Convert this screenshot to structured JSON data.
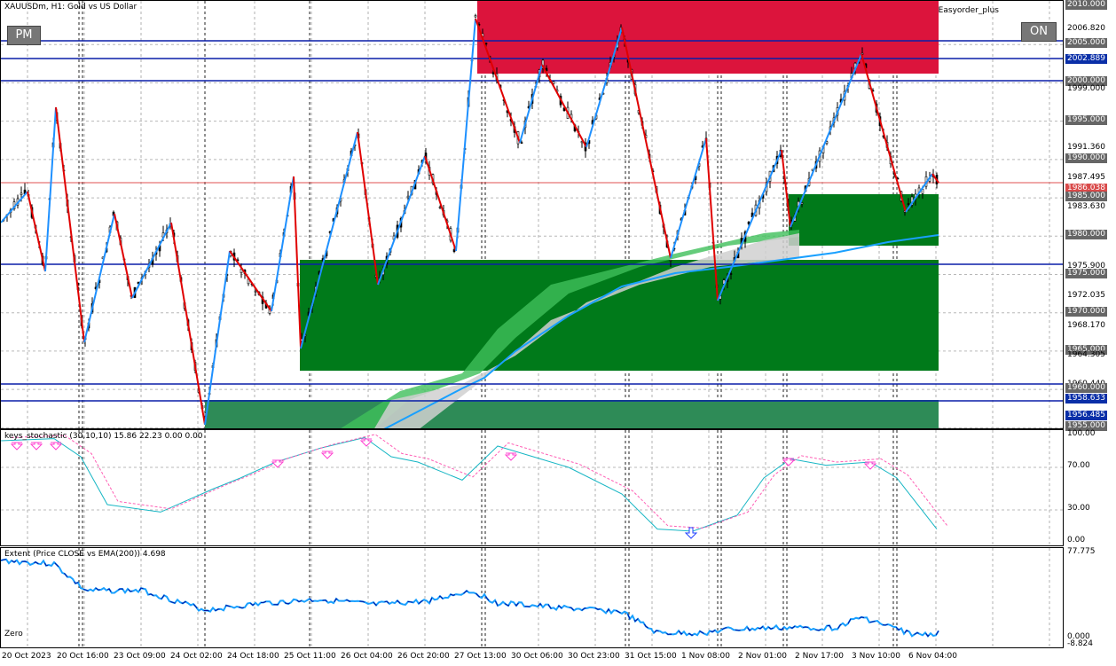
{
  "main": {
    "symbol_title": "XAUUSDm, H1:  Gold vs US Dollar",
    "pm_button": "PM",
    "on_button": "ON",
    "easyorder_label": "Easyorder_plus",
    "price_labels": [
      {
        "text": "2010.000",
        "style": "gray"
      },
      {
        "text": "2006.820",
        "style": "plain"
      },
      {
        "text": "2005.000",
        "style": "gray"
      },
      {
        "text": "2002.889",
        "style": "blue"
      },
      {
        "text": "2000.000",
        "style": "gray"
      },
      {
        "text": "1999.000",
        "style": "plain"
      },
      {
        "text": "1995.000",
        "style": "gray"
      },
      {
        "text": "1991.360",
        "style": "plain"
      },
      {
        "text": "1990.000",
        "style": "gray"
      },
      {
        "text": "1987.495",
        "style": "plain"
      },
      {
        "text": "1986.038",
        "style": "red"
      },
      {
        "text": "1985.000",
        "style": "gray"
      },
      {
        "text": "1983.630",
        "style": "plain"
      },
      {
        "text": "1980.000",
        "style": "gray"
      },
      {
        "text": "1975.000",
        "style": "gray"
      },
      {
        "text": "1975.900",
        "style": "plain"
      },
      {
        "text": "1972.035",
        "style": "plain"
      },
      {
        "text": "1970.000",
        "style": "gray"
      },
      {
        "text": "1968.170",
        "style": "plain"
      },
      {
        "text": "1965.000",
        "style": "gray"
      },
      {
        "text": "1964.305",
        "style": "plain"
      },
      {
        "text": "1960.440",
        "style": "plain"
      },
      {
        "text": "1960.000",
        "style": "gray"
      },
      {
        "text": "1958.633",
        "style": "blue"
      },
      {
        "text": "1956.485",
        "style": "blue"
      },
      {
        "text": "1955.000",
        "style": "gray"
      }
    ],
    "colors": {
      "supply": "#dc143c",
      "demand": "#007a1a",
      "demand_light": "#2e8b57",
      "up_leg": "#1e90ff",
      "down_leg": "#e00000",
      "ema": "#19a0ff",
      "hline": "#0a1fa8"
    }
  },
  "stochastic": {
    "title": "keys_stochastic (30,10,10) 15.86 22.23 0.00 0.00",
    "levels": [
      "100.00",
      "70.00",
      "30.00",
      "0.00"
    ]
  },
  "extent": {
    "title": "Extent (Price CLOSE vs EMA(200)) 4.698",
    "zero_label": "Zero",
    "levels": [
      "77.775",
      "0.000",
      "-8.824"
    ]
  },
  "time_labels": [
    "20 Oct 2023",
    "20 Oct 16:00",
    "23 Oct 09:00",
    "24 Oct 02:00",
    "24 Oct 18:00",
    "25 Oct 11:00",
    "26 Oct 04:00",
    "26 Oct 20:00",
    "27 Oct 13:00",
    "30 Oct 06:00",
    "30 Oct 23:00",
    "31 Oct 15:00",
    "1 Nov 08:00",
    "2 Nov 01:00",
    "2 Nov 17:00",
    "3 Nov 10:00",
    "6 Nov 04:00"
  ]
}
